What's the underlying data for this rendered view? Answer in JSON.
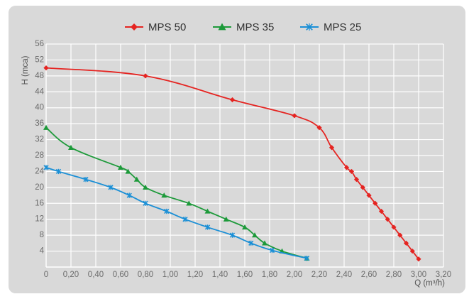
{
  "chart_data": {
    "type": "line",
    "xlabel": "Q (m³/h)",
    "ylabel": "H (mca)",
    "xlim": [
      0,
      3.2
    ],
    "ylim": [
      0,
      56
    ],
    "x_ticks": [
      0,
      0.2,
      0.4,
      0.6,
      0.8,
      1.0,
      1.2,
      1.4,
      1.6,
      1.8,
      2.0,
      2.2,
      2.4,
      2.6,
      2.8,
      3.0,
      3.2
    ],
    "x_tick_labels": [
      "0",
      "0,20",
      "0,40",
      "0,60",
      "0,80",
      "1,00",
      "1,20",
      "1,40",
      "1,60",
      "1,80",
      "2,00",
      "2,20",
      "2,40",
      "2,60",
      "2,80",
      "3,00",
      "3,20"
    ],
    "y_ticks": [
      4,
      8,
      12,
      16,
      20,
      24,
      28,
      32,
      36,
      40,
      44,
      48,
      52,
      56
    ],
    "y_tick_labels": [
      "4",
      "8",
      "12",
      "16",
      "20",
      "24",
      "28",
      "32",
      "36",
      "40",
      "44",
      "48",
      "52",
      "56"
    ],
    "grid": true,
    "legend_position": "top-center",
    "background": "#d9d9d9",
    "series": [
      {
        "name": "MPS 50",
        "color": "#e52421",
        "marker": "diamond",
        "points": [
          [
            0,
            50
          ],
          [
            0.8,
            48
          ],
          [
            1.5,
            42
          ],
          [
            2.0,
            38
          ],
          [
            2.2,
            35
          ],
          [
            2.3,
            30
          ],
          [
            2.42,
            25
          ],
          [
            2.46,
            24
          ],
          [
            2.5,
            22
          ],
          [
            2.55,
            20
          ],
          [
            2.6,
            18
          ],
          [
            2.65,
            16
          ],
          [
            2.7,
            14
          ],
          [
            2.75,
            12
          ],
          [
            2.8,
            10
          ],
          [
            2.85,
            8
          ],
          [
            2.9,
            6
          ],
          [
            2.95,
            4
          ],
          [
            3.0,
            2
          ]
        ]
      },
      {
        "name": "MPS 35",
        "color": "#1d9a3a",
        "marker": "triangle",
        "points": [
          [
            0,
            35
          ],
          [
            0.2,
            30
          ],
          [
            0.6,
            25
          ],
          [
            0.66,
            24
          ],
          [
            0.73,
            22
          ],
          [
            0.8,
            20
          ],
          [
            0.95,
            18
          ],
          [
            1.15,
            16
          ],
          [
            1.3,
            14
          ],
          [
            1.45,
            12
          ],
          [
            1.6,
            10
          ],
          [
            1.68,
            8
          ],
          [
            1.76,
            6
          ],
          [
            1.9,
            4
          ],
          [
            2.1,
            2.2
          ]
        ]
      },
      {
        "name": "MPS 25",
        "color": "#1a8fd6",
        "marker": "x",
        "points": [
          [
            0,
            25
          ],
          [
            0.1,
            24
          ],
          [
            0.32,
            22
          ],
          [
            0.52,
            20
          ],
          [
            0.67,
            18
          ],
          [
            0.8,
            16
          ],
          [
            0.97,
            14
          ],
          [
            1.12,
            12
          ],
          [
            1.3,
            10
          ],
          [
            1.5,
            8
          ],
          [
            1.65,
            6
          ],
          [
            1.82,
            4.2
          ],
          [
            2.1,
            2.2
          ]
        ]
      }
    ]
  }
}
